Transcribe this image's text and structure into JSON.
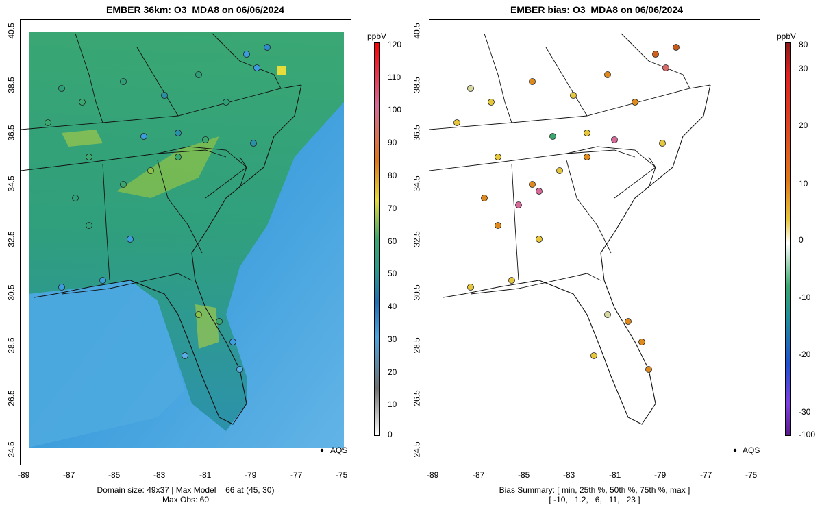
{
  "left_panel": {
    "title": "EMBER 36km: O3_MDA8 on 06/06/2024",
    "footer_line1": "Domain size: 49x37 | Max Model = 66 at (45, 30)",
    "footer_line2": "Max Obs: 60",
    "legend_label": "AQS",
    "colorbar_unit": "ppbV",
    "colorbar_ticks": [
      "120",
      "110",
      "100",
      "90",
      "80",
      "70",
      "60",
      "50",
      "40",
      "30",
      "20",
      "10",
      "0"
    ]
  },
  "right_panel": {
    "title": "EMBER bias: O3_MDA8 on 06/06/2024",
    "footer_line1": "Bias Summary: [ min, 25th %, 50th %, 75th %, max ]",
    "footer_line2": "[ -10,   1.2,   6,   11,   23 ]",
    "legend_label": "AQS",
    "colorbar_unit": "ppbV",
    "colorbar_ticks": [
      "80",
      "30",
      "20",
      "10",
      "0",
      "-10",
      "-20",
      "-30",
      "-100"
    ]
  },
  "x_ticks": [
    "-89",
    "-87",
    "-85",
    "-83",
    "-81",
    "-79",
    "-77",
    "-75"
  ],
  "y_ticks": [
    "40.5",
    "38.5",
    "36.5",
    "34.5",
    "32.5",
    "30.5",
    "28.5",
    "26.5",
    "24.5"
  ],
  "colors": {
    "ocean_light": "#5aaee6",
    "ocean_mid": "#2f8fd0",
    "land_green": "#3fae6a",
    "land_teal": "#279a8c",
    "hot_yellow": "#e6dc3c",
    "bias_orange": "#e08a1e",
    "bias_yellow": "#e6c63a"
  }
}
